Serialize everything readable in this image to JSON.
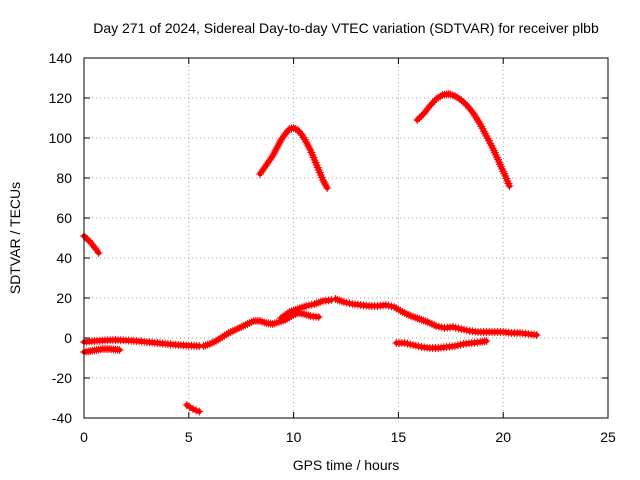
{
  "chart_data": {
    "type": "scatter",
    "title": "Day 271 of 2024, Sidereal Day-to-day VTEC variation (SDTVAR) for receiver plbb",
    "xlabel": "GPS time / hours",
    "ylabel": "SDTVAR / TECUs",
    "xlim": [
      0,
      25
    ],
    "ylim": [
      -40,
      140
    ],
    "xticks": [
      0,
      5,
      10,
      15,
      20,
      25
    ],
    "yticks": [
      -40,
      -20,
      0,
      20,
      40,
      60,
      80,
      100,
      120,
      140
    ],
    "xtick_labels": [
      "0",
      "5",
      "10",
      "15",
      "20",
      "25"
    ],
    "ytick_labels": [
      "-40",
      "-20",
      "0",
      "20",
      "40",
      "60",
      "80",
      "100",
      "120",
      "140"
    ],
    "grid": true,
    "marker": "+",
    "series_color": "#ff0000",
    "series": [
      {
        "name": "arc-early-high",
        "points": [
          [
            0.0,
            51
          ],
          [
            0.15,
            49.5
          ],
          [
            0.3,
            48
          ],
          [
            0.45,
            46
          ],
          [
            0.6,
            44
          ],
          [
            0.7,
            42.5
          ]
        ]
      },
      {
        "name": "arc-early-low",
        "points": [
          [
            0.0,
            -7
          ],
          [
            0.3,
            -6.5
          ],
          [
            0.6,
            -6
          ],
          [
            0.9,
            -5.5
          ],
          [
            1.2,
            -5.5
          ],
          [
            1.5,
            -5.8
          ],
          [
            1.7,
            -6
          ]
        ]
      },
      {
        "name": "arc-near-zero",
        "points": [
          [
            0.0,
            -2
          ],
          [
            0.5,
            -1.5
          ],
          [
            1.0,
            -1.2
          ],
          [
            1.5,
            -1
          ],
          [
            2.0,
            -1.2
          ],
          [
            2.5,
            -1.5
          ],
          [
            3.0,
            -2
          ],
          [
            3.5,
            -2.5
          ],
          [
            4.0,
            -3
          ],
          [
            4.5,
            -3.5
          ],
          [
            5.0,
            -3.8
          ],
          [
            5.5,
            -4
          ]
        ]
      },
      {
        "name": "arc-negative",
        "points": [
          [
            4.9,
            -33.5
          ],
          [
            5.05,
            -34.5
          ],
          [
            5.2,
            -35.5
          ],
          [
            5.35,
            -36.2
          ],
          [
            5.5,
            -36.8
          ]
        ]
      },
      {
        "name": "arc-rising",
        "points": [
          [
            5.7,
            -4
          ],
          [
            6.0,
            -3
          ],
          [
            6.3,
            -1.5
          ],
          [
            6.6,
            0.5
          ],
          [
            6.9,
            2.5
          ],
          [
            7.2,
            4
          ],
          [
            7.5,
            5.5
          ],
          [
            7.8,
            7
          ],
          [
            8.1,
            8.5
          ],
          [
            8.4,
            8.5
          ],
          [
            8.7,
            7.5
          ],
          [
            9.0,
            7
          ],
          [
            9.3,
            8
          ],
          [
            9.6,
            9
          ],
          [
            9.9,
            11
          ],
          [
            10.2,
            12.5
          ],
          [
            10.5,
            12
          ],
          [
            10.8,
            11
          ],
          [
            11.2,
            10.5
          ]
        ]
      },
      {
        "name": "arc-bump-low",
        "points": [
          [
            9.4,
            10
          ],
          [
            9.8,
            13
          ],
          [
            10.2,
            14.5
          ],
          [
            10.6,
            16
          ],
          [
            11.0,
            17
          ],
          [
            11.4,
            18.5
          ],
          [
            11.8,
            19
          ]
        ]
      },
      {
        "name": "arc-mid-peak",
        "points": [
          [
            12.0,
            19.5
          ],
          [
            12.4,
            18
          ],
          [
            12.8,
            17
          ],
          [
            13.2,
            16.5
          ],
          [
            13.6,
            16
          ],
          [
            14.0,
            16
          ],
          [
            14.4,
            16.5
          ],
          [
            14.8,
            15.5
          ],
          [
            15.2,
            13
          ],
          [
            15.6,
            11
          ],
          [
            16.0,
            9.5
          ],
          [
            16.4,
            8
          ],
          [
            16.8,
            6
          ],
          [
            17.2,
            5
          ],
          [
            17.6,
            5.5
          ],
          [
            18.0,
            4.5
          ],
          [
            18.4,
            3.5
          ],
          [
            18.8,
            3
          ],
          [
            19.2,
            3
          ],
          [
            19.6,
            3
          ],
          [
            20.0,
            3
          ],
          [
            20.4,
            2.5
          ],
          [
            20.8,
            2.5
          ],
          [
            21.2,
            2
          ],
          [
            21.6,
            1.5
          ]
        ]
      },
      {
        "name": "arc-trough",
        "points": [
          [
            14.9,
            -2.5
          ],
          [
            15.3,
            -2.5
          ],
          [
            15.7,
            -3.5
          ],
          [
            16.1,
            -4.5
          ],
          [
            16.5,
            -5
          ],
          [
            16.9,
            -5
          ],
          [
            17.3,
            -4.5
          ],
          [
            17.7,
            -4
          ],
          [
            18.1,
            -3
          ],
          [
            18.5,
            -2.5
          ],
          [
            18.9,
            -2
          ],
          [
            19.2,
            -1.5
          ]
        ]
      },
      {
        "name": "arc-high-1",
        "points": [
          [
            8.4,
            82
          ],
          [
            8.6,
            85
          ],
          [
            8.8,
            88
          ],
          [
            9.0,
            91
          ],
          [
            9.2,
            95
          ],
          [
            9.4,
            99
          ],
          [
            9.6,
            102
          ],
          [
            9.8,
            104.5
          ],
          [
            10.0,
            105
          ],
          [
            10.2,
            104
          ],
          [
            10.4,
            101.5
          ],
          [
            10.6,
            98
          ],
          [
            10.8,
            94
          ],
          [
            11.0,
            89
          ],
          [
            11.2,
            84
          ],
          [
            11.4,
            79
          ],
          [
            11.6,
            75
          ]
        ]
      },
      {
        "name": "arc-high-2",
        "points": [
          [
            15.9,
            109
          ],
          [
            16.2,
            112
          ],
          [
            16.5,
            116
          ],
          [
            16.8,
            119.5
          ],
          [
            17.1,
            121.5
          ],
          [
            17.4,
            122
          ],
          [
            17.7,
            121
          ],
          [
            18.0,
            119
          ],
          [
            18.3,
            116
          ],
          [
            18.6,
            112
          ],
          [
            18.9,
            107
          ],
          [
            19.2,
            101
          ],
          [
            19.5,
            95
          ],
          [
            19.8,
            88
          ],
          [
            20.1,
            81
          ],
          [
            20.3,
            76
          ]
        ]
      }
    ]
  }
}
